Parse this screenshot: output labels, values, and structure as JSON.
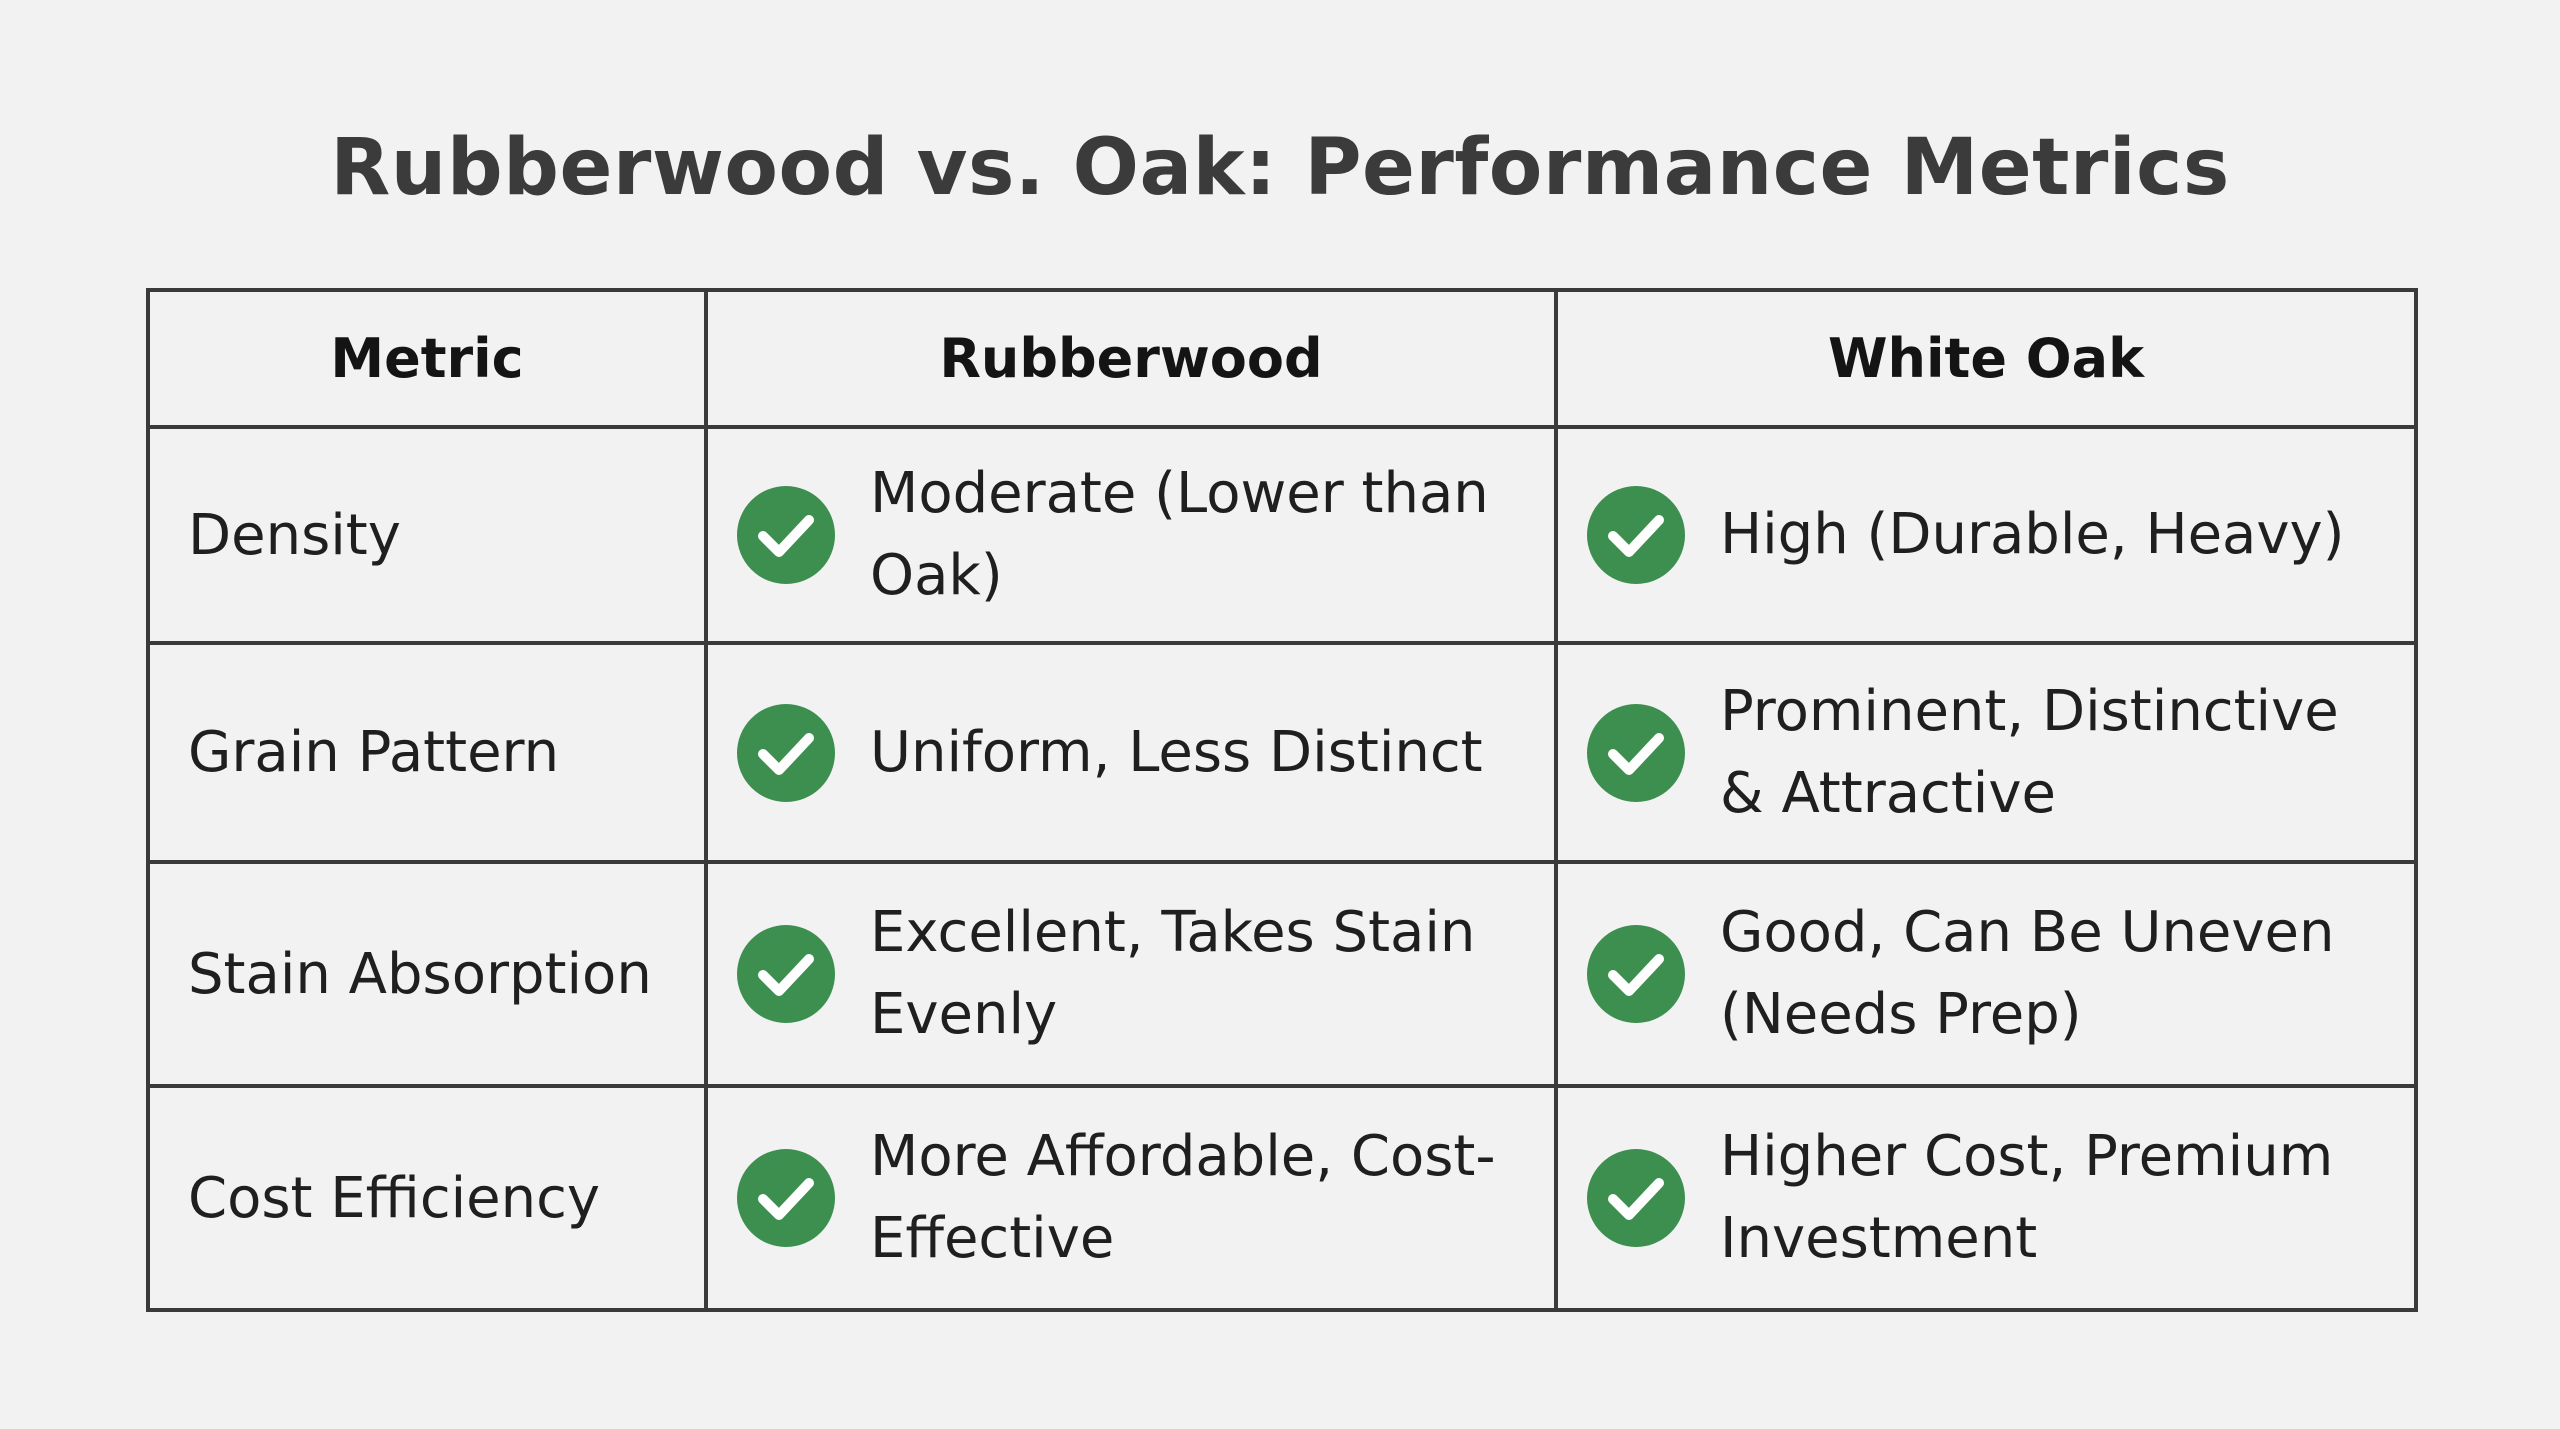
{
  "title": "Rubberwood vs. Oak: Performance Metrics",
  "headers": [
    "Metric",
    "Rubberwood",
    "White Oak"
  ],
  "rows": [
    {
      "metric": "Density",
      "rubberwood": "Moderate (Lower than Oak)",
      "white_oak": "High (Durable, Heavy)"
    },
    {
      "metric": "Grain Pattern",
      "rubberwood": "Uniform, Less Distinct",
      "white_oak": "Prominent, Distinctive & Attractive"
    },
    {
      "metric": "Stain Absorption",
      "rubberwood": "Excellent, Takes Stain Evenly",
      "white_oak": "Good, Can Be Uneven (Needs Prep)"
    },
    {
      "metric": "Cost Efficiency",
      "rubberwood": "More Affordable, Cost-Effective",
      "white_oak": "Higher Cost, Premium Investment"
    }
  ],
  "icons": {
    "check": "check-circle-icon"
  },
  "colors": {
    "check_green": "#3d8f4f",
    "background": "#f2f2f2",
    "border": "#3a3a3a"
  }
}
